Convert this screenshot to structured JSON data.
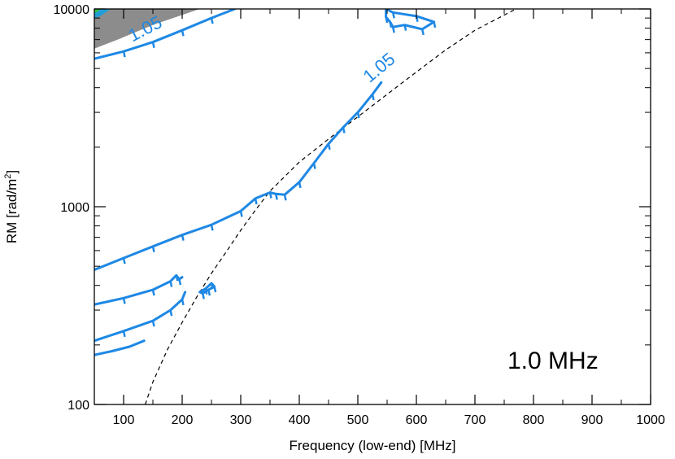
{
  "chart_data": {
    "type": "line",
    "title": "",
    "annotation": "1.0 MHz",
    "xlabel": "Frequency (low-end) [MHz]",
    "ylabel": "RM [rad/m²]",
    "ylabel_main": "RM [rad/m",
    "ylabel_sup": "2",
    "ylabel_end": "]",
    "xlim": [
      50,
      1000
    ],
    "ylim": [
      100,
      10000
    ],
    "yscale": "log",
    "x_ticks": [
      100,
      200,
      300,
      400,
      500,
      600,
      700,
      800,
      900,
      1000
    ],
    "x_tick_labels": [
      "100",
      "200",
      "300",
      "400",
      "500",
      "600",
      "700",
      "800",
      "900",
      "1000"
    ],
    "y_ticks": [
      100,
      1000,
      10000
    ],
    "y_tick_labels": [
      "100",
      "1000",
      "10000"
    ],
    "contour_labels": [
      "1.05",
      "1.05"
    ],
    "colors": {
      "contour": "#1e88e5",
      "shade": "#8c8c8c",
      "reference": "#000000"
    },
    "series": [
      {
        "name": "reference curve",
        "style": "dashed",
        "color": "#000000",
        "x": [
          137,
          150,
          175,
          200,
          225,
          250,
          275,
          300,
          325,
          350,
          400,
          450,
          500,
          550,
          600,
          650,
          700,
          770
        ],
        "y": [
          100,
          130,
          190,
          260,
          350,
          460,
          590,
          760,
          960,
          1200,
          1680,
          2200,
          2850,
          3700,
          4800,
          6200,
          7800,
          10000
        ]
      },
      {
        "name": "1.05 contour (main)",
        "style": "solid",
        "color": "#1e88e5",
        "x": [
          50,
          100,
          150,
          200,
          250,
          300,
          325,
          350,
          360,
          375,
          400,
          425,
          450,
          475,
          500,
          525,
          540
        ],
        "y": [
          480,
          550,
          630,
          720,
          810,
          950,
          1100,
          1180,
          1160,
          1150,
          1330,
          1660,
          2080,
          2520,
          3000,
          3700,
          4250
        ]
      },
      {
        "name": "1.05 contour (lower branch A)",
        "style": "solid",
        "color": "#1e88e5",
        "x": [
          50,
          100,
          150,
          180,
          190,
          195,
          200
        ],
        "y": [
          320,
          345,
          380,
          420,
          450,
          430,
          440
        ]
      },
      {
        "name": "1.05 contour (lower branch B)",
        "style": "solid",
        "color": "#1e88e5",
        "x": [
          50,
          100,
          150,
          180,
          200,
          205
        ],
        "y": [
          210,
          235,
          265,
          300,
          340,
          370
        ]
      },
      {
        "name": "1.05 contour (lower branch C)",
        "style": "solid",
        "color": "#1e88e5",
        "x": [
          50,
          80,
          110,
          135
        ],
        "y": [
          178,
          186,
          196,
          210
        ]
      },
      {
        "name": "1.05 contour (upper)",
        "style": "solid",
        "color": "#1e88e5",
        "x": [
          50,
          100,
          150,
          200,
          250,
          290
        ],
        "y": [
          5600,
          6100,
          6800,
          7800,
          9000,
          10000
        ]
      },
      {
        "name": "1.05 contour (upper loop)",
        "style": "solid",
        "color": "#1e88e5",
        "x": [
          548,
          560,
          600,
          630,
          610,
          580,
          560,
          555,
          548,
          548
        ],
        "y": [
          10000,
          9600,
          9200,
          8600,
          7900,
          8300,
          8100,
          8600,
          9100,
          10000
        ]
      },
      {
        "name": "1.05 contour (small loop)",
        "style": "solid",
        "color": "#1e88e5",
        "x": [
          230,
          240,
          250,
          255,
          245,
          235,
          230
        ],
        "y": [
          370,
          385,
          410,
          395,
          380,
          365,
          370
        ]
      }
    ]
  }
}
